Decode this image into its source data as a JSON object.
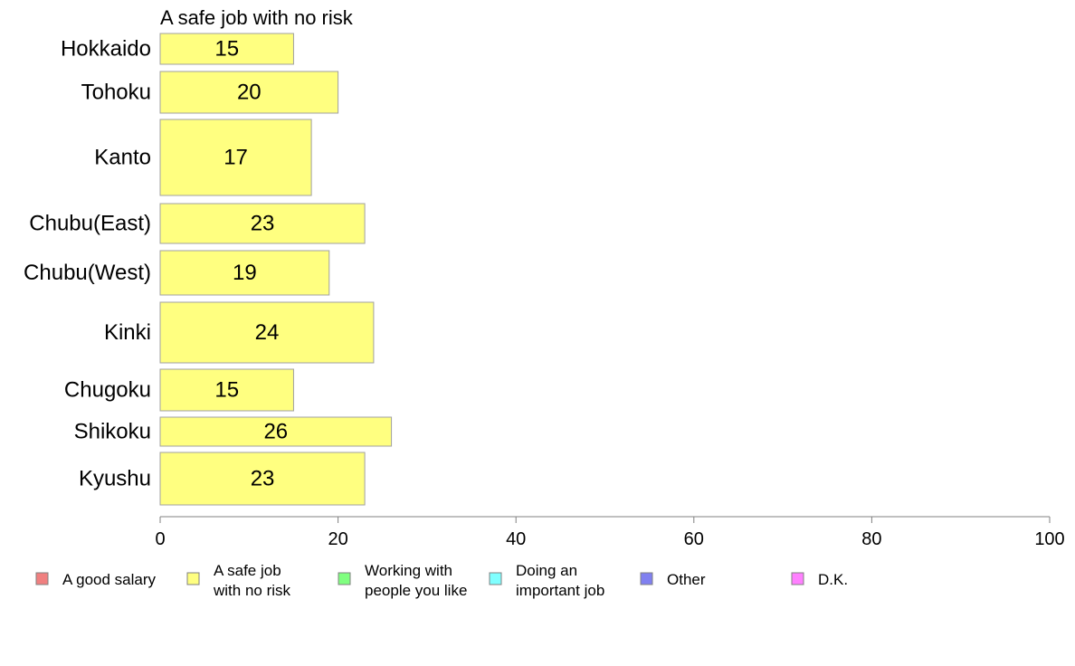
{
  "chart_data": {
    "type": "bar",
    "orientation": "horizontal",
    "title": "A safe job with no risk",
    "categories": [
      "Hokkaido",
      "Tohoku",
      "Kanto",
      "Chubu(East)",
      "Chubu(West)",
      "Kinki",
      "Chugoku",
      "Shikoku",
      "Kyushu"
    ],
    "series": [
      {
        "name": "A safe job with no risk",
        "values": [
          15,
          20,
          17,
          23,
          19,
          24,
          15,
          26,
          23
        ],
        "color": "#ffff80"
      }
    ],
    "xlim": [
      0,
      100
    ],
    "xticks": [
      0,
      20,
      40,
      60,
      80,
      100
    ],
    "grid": false,
    "legend_position": "bottom",
    "legend": [
      {
        "label": "A good salary",
        "color": "#f08080"
      },
      {
        "label": "A safe job with no risk",
        "color": "#ffff80"
      },
      {
        "label": "Working with people you like",
        "color": "#80ff80"
      },
      {
        "label": "Doing an important job",
        "color": "#80ffff"
      },
      {
        "label": "Other",
        "color": "#8080f0"
      },
      {
        "label": "D.K.",
        "color": "#ff80ff"
      }
    ]
  }
}
